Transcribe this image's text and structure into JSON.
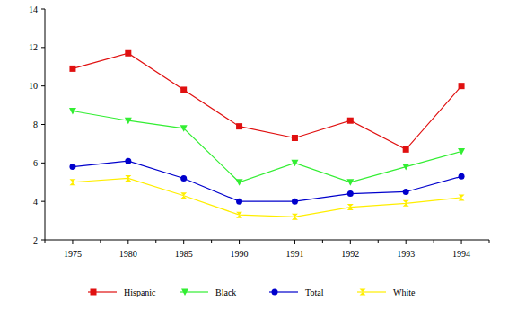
{
  "chart_data": {
    "type": "line",
    "categories": [
      "1975",
      "1980",
      "1985",
      "1990",
      "1991",
      "1992",
      "1993",
      "1994"
    ],
    "series": [
      {
        "name": "Hispanic",
        "color": "#e01010",
        "marker": "square",
        "values": [
          10.9,
          11.7,
          9.8,
          7.9,
          7.3,
          8.2,
          6.7,
          10.0
        ]
      },
      {
        "name": "Black",
        "color": "#33ee33",
        "marker": "triangle-down",
        "values": [
          8.7,
          8.2,
          7.8,
          5.0,
          6.0,
          5.0,
          5.8,
          6.6
        ]
      },
      {
        "name": "Total",
        "color": "#0000cc",
        "marker": "circle",
        "values": [
          5.8,
          6.1,
          5.2,
          4.0,
          4.0,
          4.4,
          4.5,
          5.3
        ]
      },
      {
        "name": "White",
        "color": "#ffee00",
        "marker": "bowtie",
        "values": [
          5.0,
          5.2,
          4.3,
          3.3,
          3.2,
          3.7,
          3.9,
          4.2
        ]
      }
    ],
    "ylim": [
      2,
      14
    ],
    "yticks": [
      2,
      4,
      6,
      8,
      10,
      12,
      14
    ],
    "grid": false,
    "legend": "bottom"
  }
}
